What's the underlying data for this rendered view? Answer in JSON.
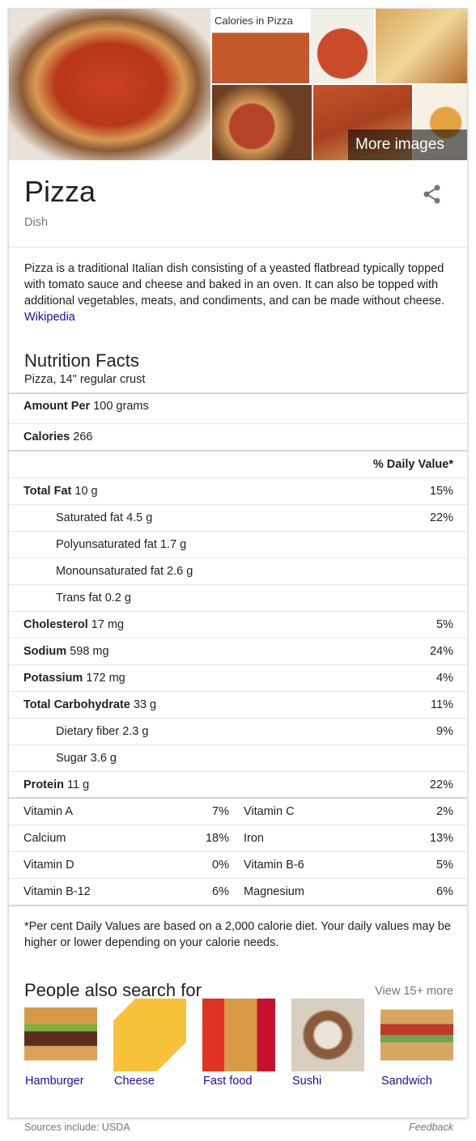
{
  "images": {
    "caption": "Calories in Pizza",
    "more": "More images"
  },
  "header": {
    "title": "Pizza",
    "subtitle": "Dish"
  },
  "description": {
    "text": "Pizza is a traditional Italian dish consisting of a yeasted flatbread typically topped with tomato sauce and cheese and baked in an oven. It can also be topped with additional vegetables, meats, and condiments, and can be made without cheese.",
    "link": "Wikipedia"
  },
  "nutrition": {
    "title": "Nutrition Facts",
    "serving": "Pizza, 14\" regular crust",
    "amount_label": "Amount Per",
    "amount": "100 grams",
    "calories_label": "Calories",
    "calories": "266",
    "daily_value_header": "% Daily Value*",
    "rows": [
      {
        "name": "Total Fat",
        "amount": "10 g",
        "dv": "15%"
      },
      {
        "name": "Saturated fat",
        "amount": "4.5 g",
        "dv": "22%",
        "sub": true
      },
      {
        "name": "Polyunsaturated fat",
        "amount": "1.7 g",
        "sub": true
      },
      {
        "name": "Monounsaturated fat",
        "amount": "2.6 g",
        "sub": true
      },
      {
        "name": "Trans fat",
        "amount": "0.2 g",
        "sub": true
      },
      {
        "name": "Cholesterol",
        "amount": "17 mg",
        "dv": "5%"
      },
      {
        "name": "Sodium",
        "amount": "598 mg",
        "dv": "24%"
      },
      {
        "name": "Potassium",
        "amount": "172 mg",
        "dv": "4%"
      },
      {
        "name": "Total Carbohydrate",
        "amount": "33 g",
        "dv": "11%"
      },
      {
        "name": "Dietary fiber",
        "amount": "2.3 g",
        "dv": "9%",
        "sub": true
      },
      {
        "name": "Sugar",
        "amount": "3.6 g",
        "sub": true
      },
      {
        "name": "Protein",
        "amount": "11 g",
        "dv": "22%"
      }
    ],
    "vitamins": [
      {
        "name": "Vitamin A",
        "dv": "7%"
      },
      {
        "name": "Vitamin C",
        "dv": "2%"
      },
      {
        "name": "Calcium",
        "dv": "18%"
      },
      {
        "name": "Iron",
        "dv": "13%"
      },
      {
        "name": "Vitamin D",
        "dv": "0%"
      },
      {
        "name": "Vitamin B-6",
        "dv": "5%"
      },
      {
        "name": "Vitamin B-12",
        "dv": "6%"
      },
      {
        "name": "Magnesium",
        "dv": "6%"
      }
    ],
    "footnote": "*Per cent Daily Values are based on a 2,000 calorie diet. Your daily values may be higher or lower depending on your calorie needs."
  },
  "related": {
    "title": "People also search for",
    "more": "View 15+ more",
    "items": [
      "Hamburger",
      "Cheese",
      "Fast food",
      "Sushi",
      "Sandwich"
    ]
  },
  "footer": {
    "sources": "Sources include: USDA",
    "feedback": "Feedback"
  }
}
